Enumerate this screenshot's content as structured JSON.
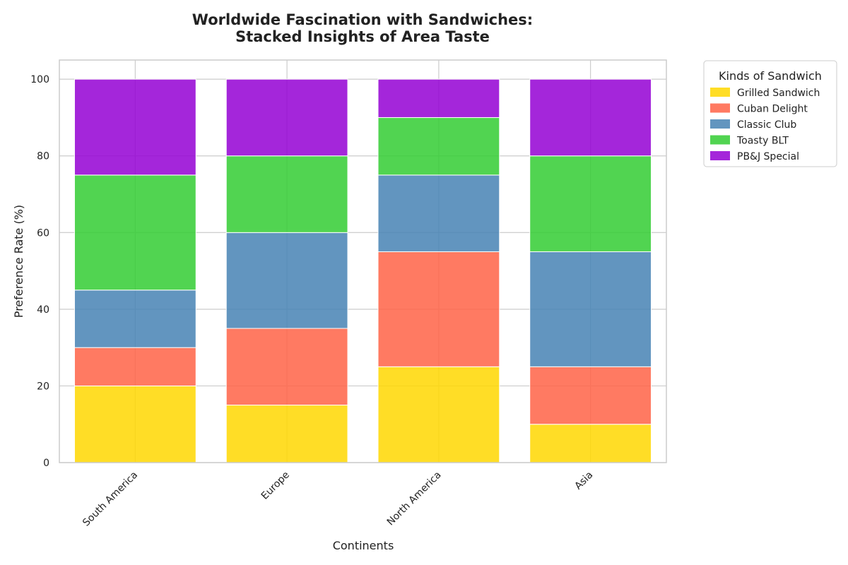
{
  "chart_data": {
    "type": "bar",
    "stacked": true,
    "title": [
      "Worldwide Fascination with Sandwiches:",
      "Stacked Insights of Area Taste"
    ],
    "xlabel": "Continents",
    "ylabel": "Preference Rate (%)",
    "categories": [
      "South America",
      "Europe",
      "North America",
      "Asia"
    ],
    "ylim": [
      0,
      105
    ],
    "yticks": [
      0,
      20,
      40,
      60,
      80,
      100
    ],
    "grid": true,
    "legend": {
      "title": "Kinds of Sandwich",
      "placement": "outside-top-right"
    },
    "series": [
      {
        "name": "Grilled Sandwich",
        "color": "#FFD700",
        "values": [
          20,
          15,
          25,
          10
        ]
      },
      {
        "name": "Cuban Delight",
        "color": "#FF6347",
        "values": [
          10,
          20,
          30,
          15
        ]
      },
      {
        "name": "Classic Club",
        "color": "#4682B4",
        "values": [
          15,
          25,
          20,
          30
        ]
      },
      {
        "name": "Toasty BLT",
        "color": "#32CD32",
        "values": [
          30,
          20,
          15,
          25
        ]
      },
      {
        "name": "PB&J Special",
        "color": "#9400D3",
        "values": [
          25,
          20,
          10,
          20
        ]
      }
    ]
  }
}
